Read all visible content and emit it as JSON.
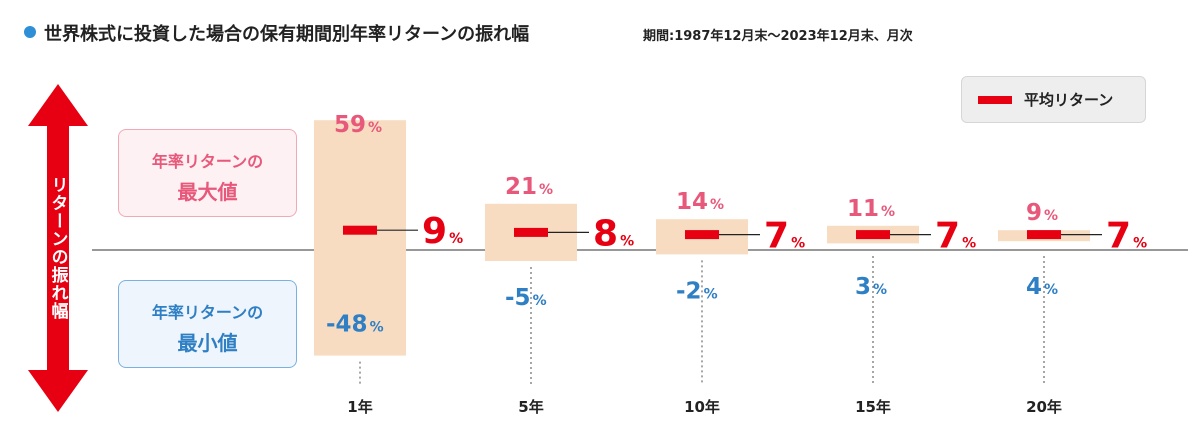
{
  "title": "世界株式に投資した場合の保有期間別年率リターンの振れ幅",
  "period": "期間:1987年12月末〜2023年12月末、月次",
  "axis_label": "リターンの振れ幅",
  "max_box": {
    "line1": "年率リターンの",
    "line2": "最大値"
  },
  "min_box": {
    "line1": "年率リターンの",
    "line2": "最小値"
  },
  "legend": {
    "label": "平均リターン"
  },
  "colors": {
    "bar": "#f8dcc2",
    "average": "#e60012",
    "max": "#e8587a",
    "min": "#2f7fc4",
    "axis_arrow": "#e60012",
    "title_dot": "#2e8fd6"
  },
  "chart_data": {
    "type": "bar",
    "subtype": "floating-range",
    "categories": [
      "1年",
      "5年",
      "10年",
      "15年",
      "20年"
    ],
    "unit": "%",
    "series": [
      {
        "name": "年率リターンの最大値",
        "values": [
          59,
          21,
          14,
          11,
          9
        ]
      },
      {
        "name": "年率リターンの最小値",
        "values": [
          -48,
          -5,
          -2,
          3,
          4
        ]
      },
      {
        "name": "平均リターン",
        "values": [
          9,
          8,
          7,
          7,
          7
        ]
      }
    ],
    "ylim": [
      -48,
      59
    ],
    "grid": false,
    "legend_position": "top-right"
  }
}
